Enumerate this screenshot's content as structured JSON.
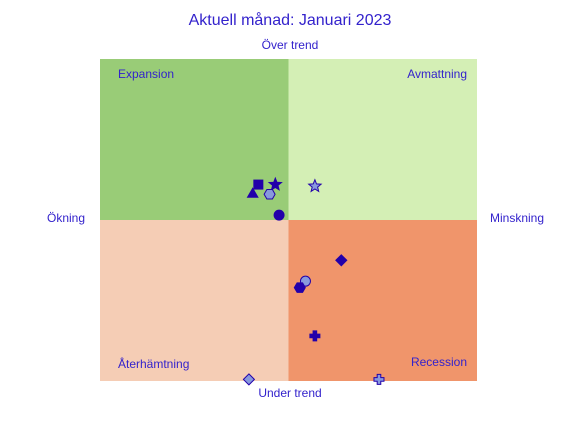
{
  "chart_data": {
    "type": "scatter",
    "title": "Aktuell månad: Januari 2023",
    "top_label": "Över trend",
    "bottom_label": "Under trend",
    "left_label": "Ökning",
    "right_label": "Minskning",
    "quadrants": [
      {
        "label": "Expansion",
        "color": "#99cc77"
      },
      {
        "label": "Avmattning",
        "color": "#d4efb5"
      },
      {
        "label": "Återhämtning",
        "color": "#f5cdb5"
      },
      {
        "label": "Recession",
        "color": "#f0956b"
      }
    ],
    "xlim": [
      -1,
      1
    ],
    "ylim": [
      -1,
      1
    ],
    "points": [
      {
        "x": -0.16,
        "y": 0.22,
        "marker": "square",
        "color": "#2200aa"
      },
      {
        "x": -0.07,
        "y": 0.22,
        "marker": "star",
        "color": "#2200aa"
      },
      {
        "x": -0.19,
        "y": 0.16,
        "marker": "triangle",
        "color": "#2200aa"
      },
      {
        "x": -0.1,
        "y": 0.16,
        "marker": "hexagon",
        "color": "#8899dd"
      },
      {
        "x": -0.05,
        "y": 0.03,
        "marker": "circle",
        "color": "#2200aa"
      },
      {
        "x": 0.14,
        "y": 0.21,
        "marker": "star",
        "color": "#8899dd"
      },
      {
        "x": 0.28,
        "y": -0.25,
        "marker": "diamond",
        "color": "#2200aa"
      },
      {
        "x": 0.09,
        "y": -0.38,
        "marker": "circle",
        "color": "#8899dd"
      },
      {
        "x": 0.06,
        "y": -0.42,
        "marker": "hexagon",
        "color": "#2200aa"
      },
      {
        "x": 0.14,
        "y": -0.72,
        "marker": "plus",
        "color": "#2200aa"
      },
      {
        "x": -0.21,
        "y": -0.99,
        "marker": "diamond",
        "color": "#8899dd"
      },
      {
        "x": 0.48,
        "y": -0.99,
        "marker": "plus",
        "color": "#8899dd"
      }
    ]
  }
}
